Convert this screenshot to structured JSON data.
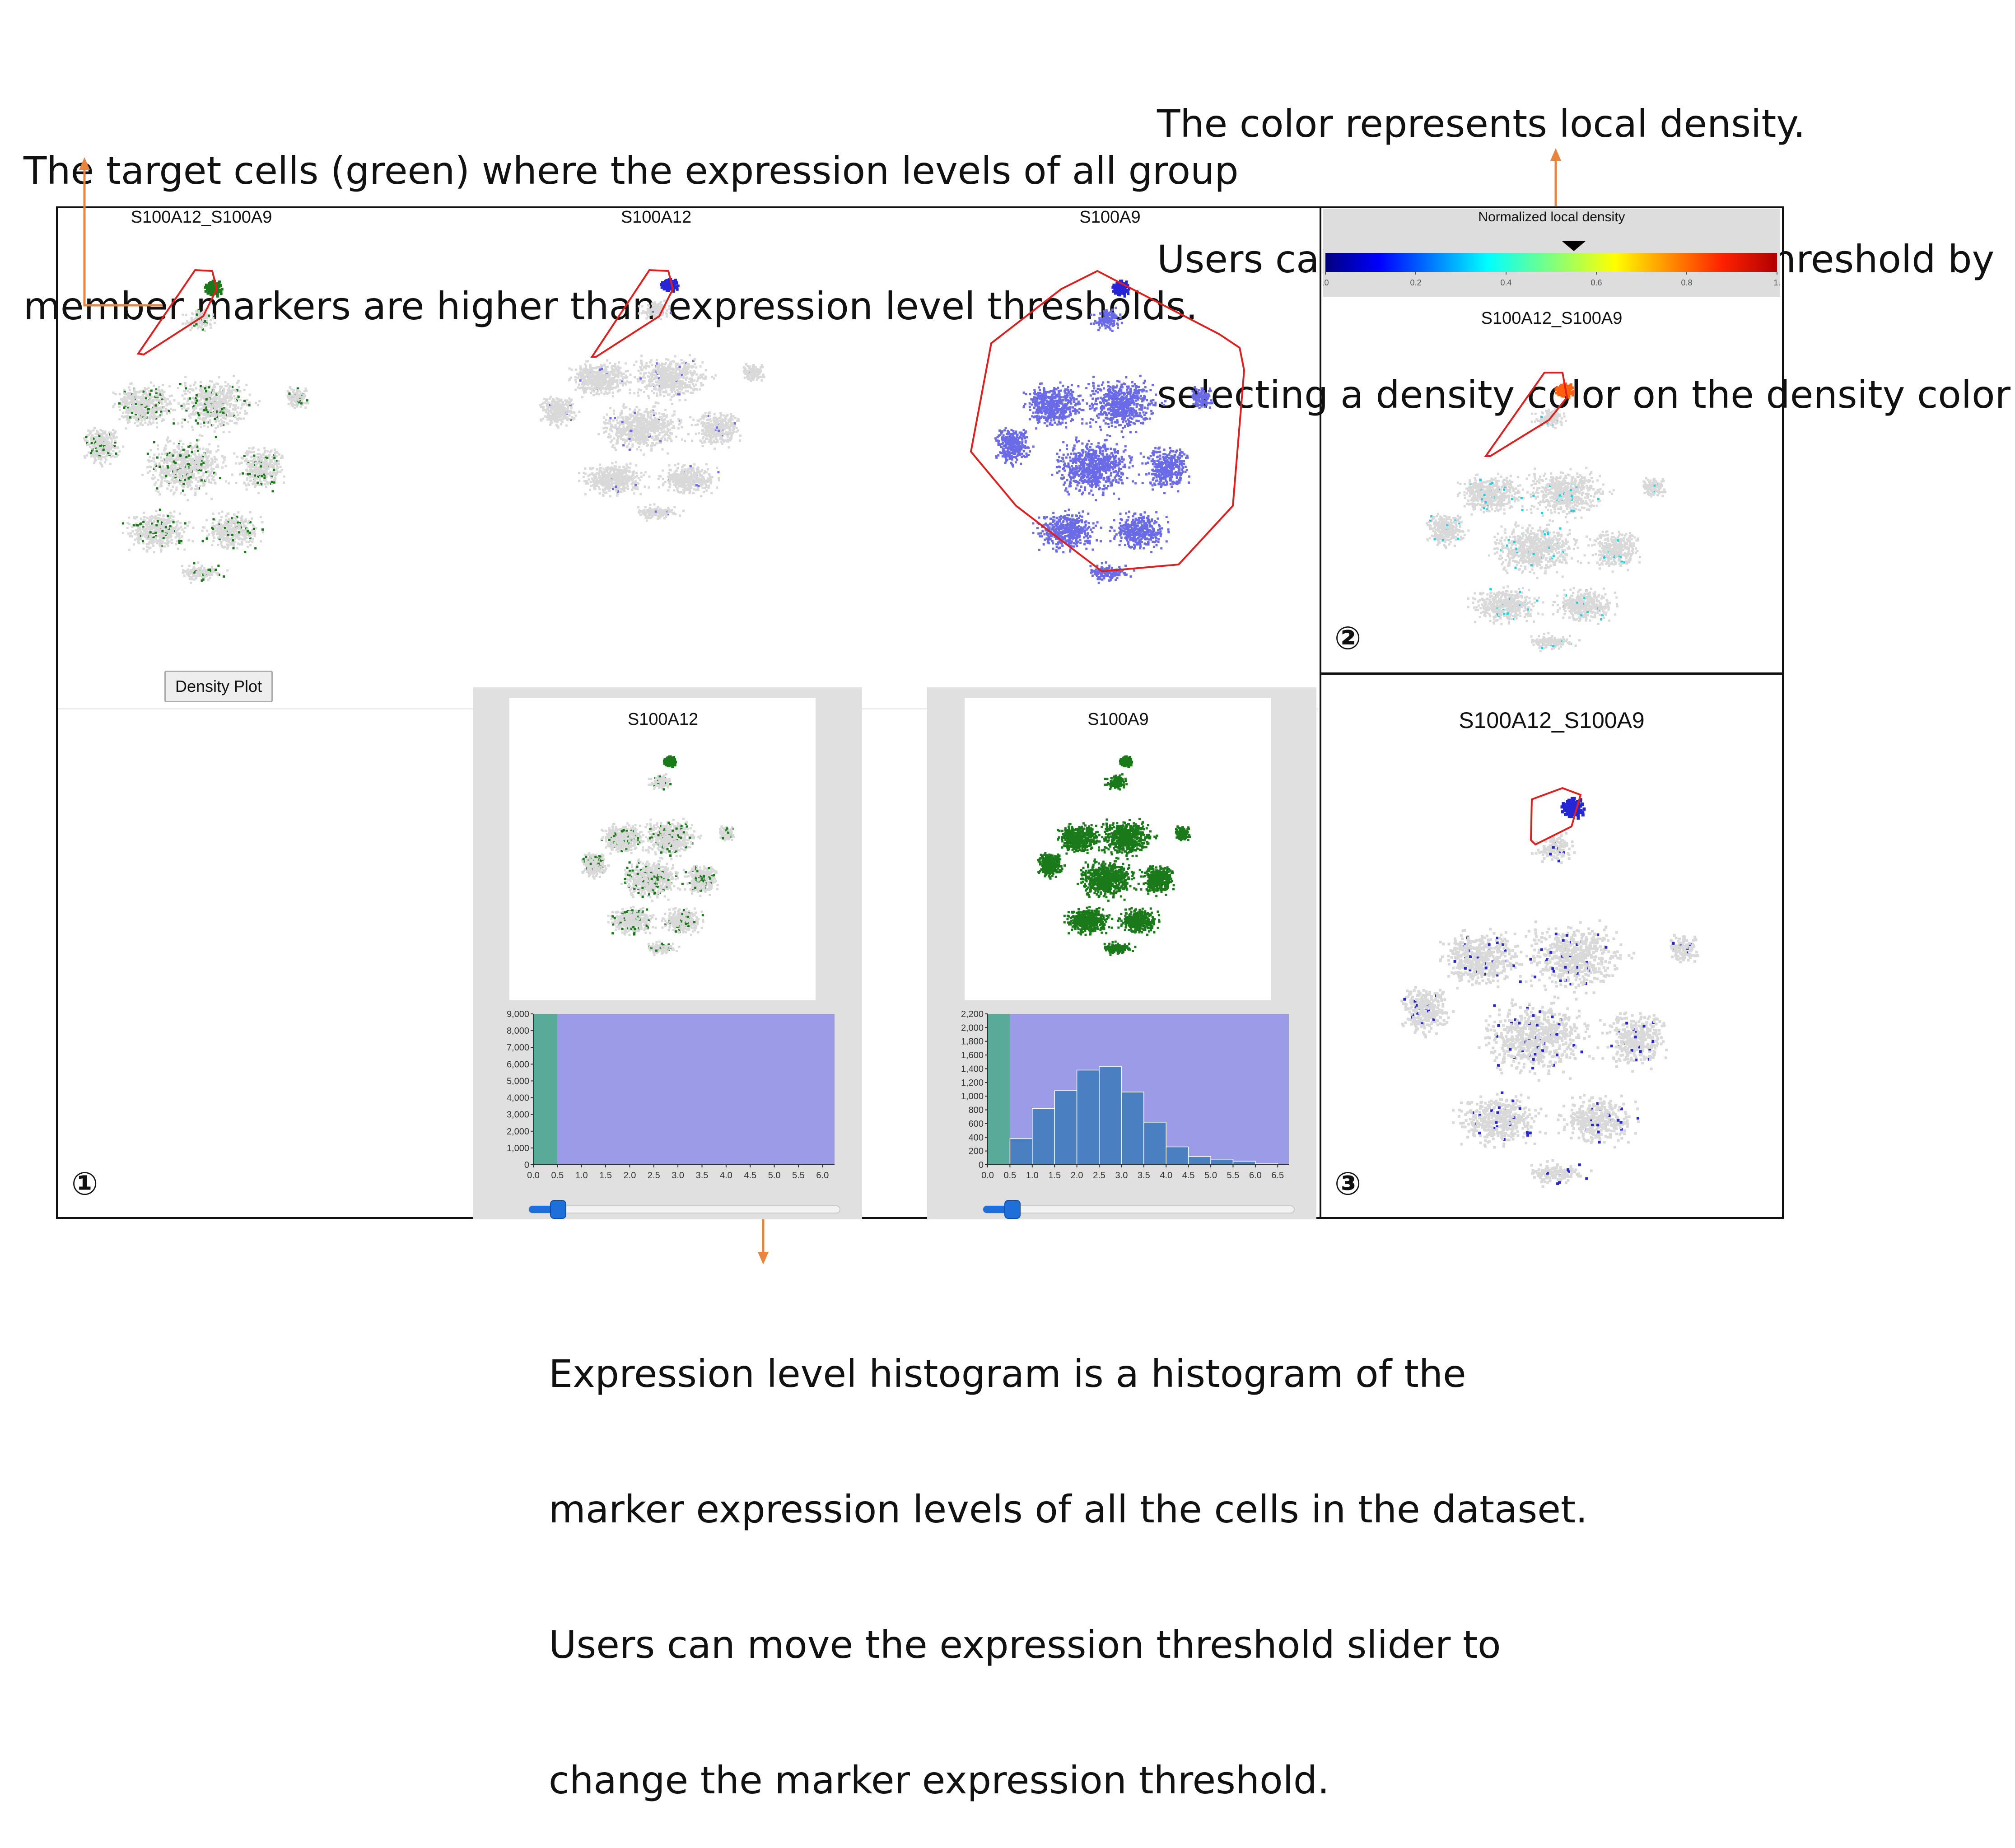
{
  "annotations": {
    "target_cells": [
      "The target cells (green) where the expression levels of all group",
      "member markers are higher than expression level thresholds."
    ],
    "density": [
      "The color represents local density.",
      "Users can select a new density threshold by",
      "selecting a density color on the density color bar."
    ],
    "histogram": [
      "Expression level histogram is a histogram of the",
      "marker expression levels of all the cells in the dataset.",
      "Users can move the expression threshold slider to",
      "change the marker expression threshold."
    ]
  },
  "panel1": {
    "plots": [
      {
        "title": "S100A12_S100A9"
      },
      {
        "title": "S100A12"
      },
      {
        "title": "S100A9"
      }
    ],
    "density_button": "Density Plot",
    "marker_label": "①",
    "histograms": [
      {
        "title": "S100A12",
        "y_ticks": [
          "9,000",
          "8,000",
          "7,000",
          "6,000",
          "5,000",
          "4,000",
          "3,000",
          "2,000",
          "1,000",
          "0"
        ],
        "x_ticks": [
          "0.0",
          "0.5",
          "1.0",
          "1.5",
          "2.0",
          "2.5",
          "3.0",
          "3.5",
          "4.0",
          "4.5",
          "5.0",
          "5.5",
          "6.0"
        ],
        "slider_value": 0.1
      },
      {
        "title": "S100A9",
        "y_ticks": [
          "2,200",
          "2,000",
          "1,800",
          "1,600",
          "1,400",
          "1,200",
          "1,000",
          "800",
          "600",
          "400",
          "200",
          "0"
        ],
        "x_ticks": [
          "0.0",
          "0.5",
          "1.0",
          "1.5",
          "2.0",
          "2.5",
          "3.0",
          "3.5",
          "4.0",
          "4.5",
          "5.0",
          "5.5",
          "6.0",
          "6.5"
        ],
        "slider_value": 0.1
      }
    ]
  },
  "panel2": {
    "colorbar_title": "Normalized local density",
    "colorbar_ticks": [
      ".0",
      "0.2",
      "0.4",
      "0.6",
      "0.8",
      "1."
    ],
    "selected_threshold": 0.55,
    "plot_title": "S100A12_S100A9",
    "marker_label": "②"
  },
  "panel3": {
    "plot_title": "S100A12_S100A9",
    "marker_label": "③"
  },
  "colors": {
    "green_cells": "#1a7a1a",
    "blue_cells": "#2626d6",
    "light_blue_cells": "#6b6be8",
    "grey_cells": "#d9d9d9",
    "polygon": "#e01e1e",
    "arrow": "#e8843c",
    "hist_bar": "#4a7fc1",
    "hist_selected_bg": "#9b9be8",
    "hist_below_threshold": "#5aaa9a",
    "slider_thumb": "#1e6fd9"
  },
  "chart_data": [
    {
      "type": "bar",
      "title": "S100A12",
      "x": [
        0.25
      ],
      "values": [
        9000
      ],
      "ylim": [
        0,
        9000
      ],
      "xlim": [
        0,
        6.25
      ]
    },
    {
      "type": "bar",
      "title": "S100A9",
      "x": [
        0.25,
        0.75,
        1.25,
        1.75,
        2.25,
        2.75,
        3.25,
        3.75,
        4.25,
        4.75,
        5.25,
        5.75,
        6.25
      ],
      "values": [
        2200,
        380,
        820,
        1080,
        1380,
        1430,
        1060,
        620,
        260,
        120,
        80,
        50,
        20
      ],
      "ylim": [
        0,
        2200
      ],
      "xlim": [
        0,
        6.75
      ]
    }
  ]
}
